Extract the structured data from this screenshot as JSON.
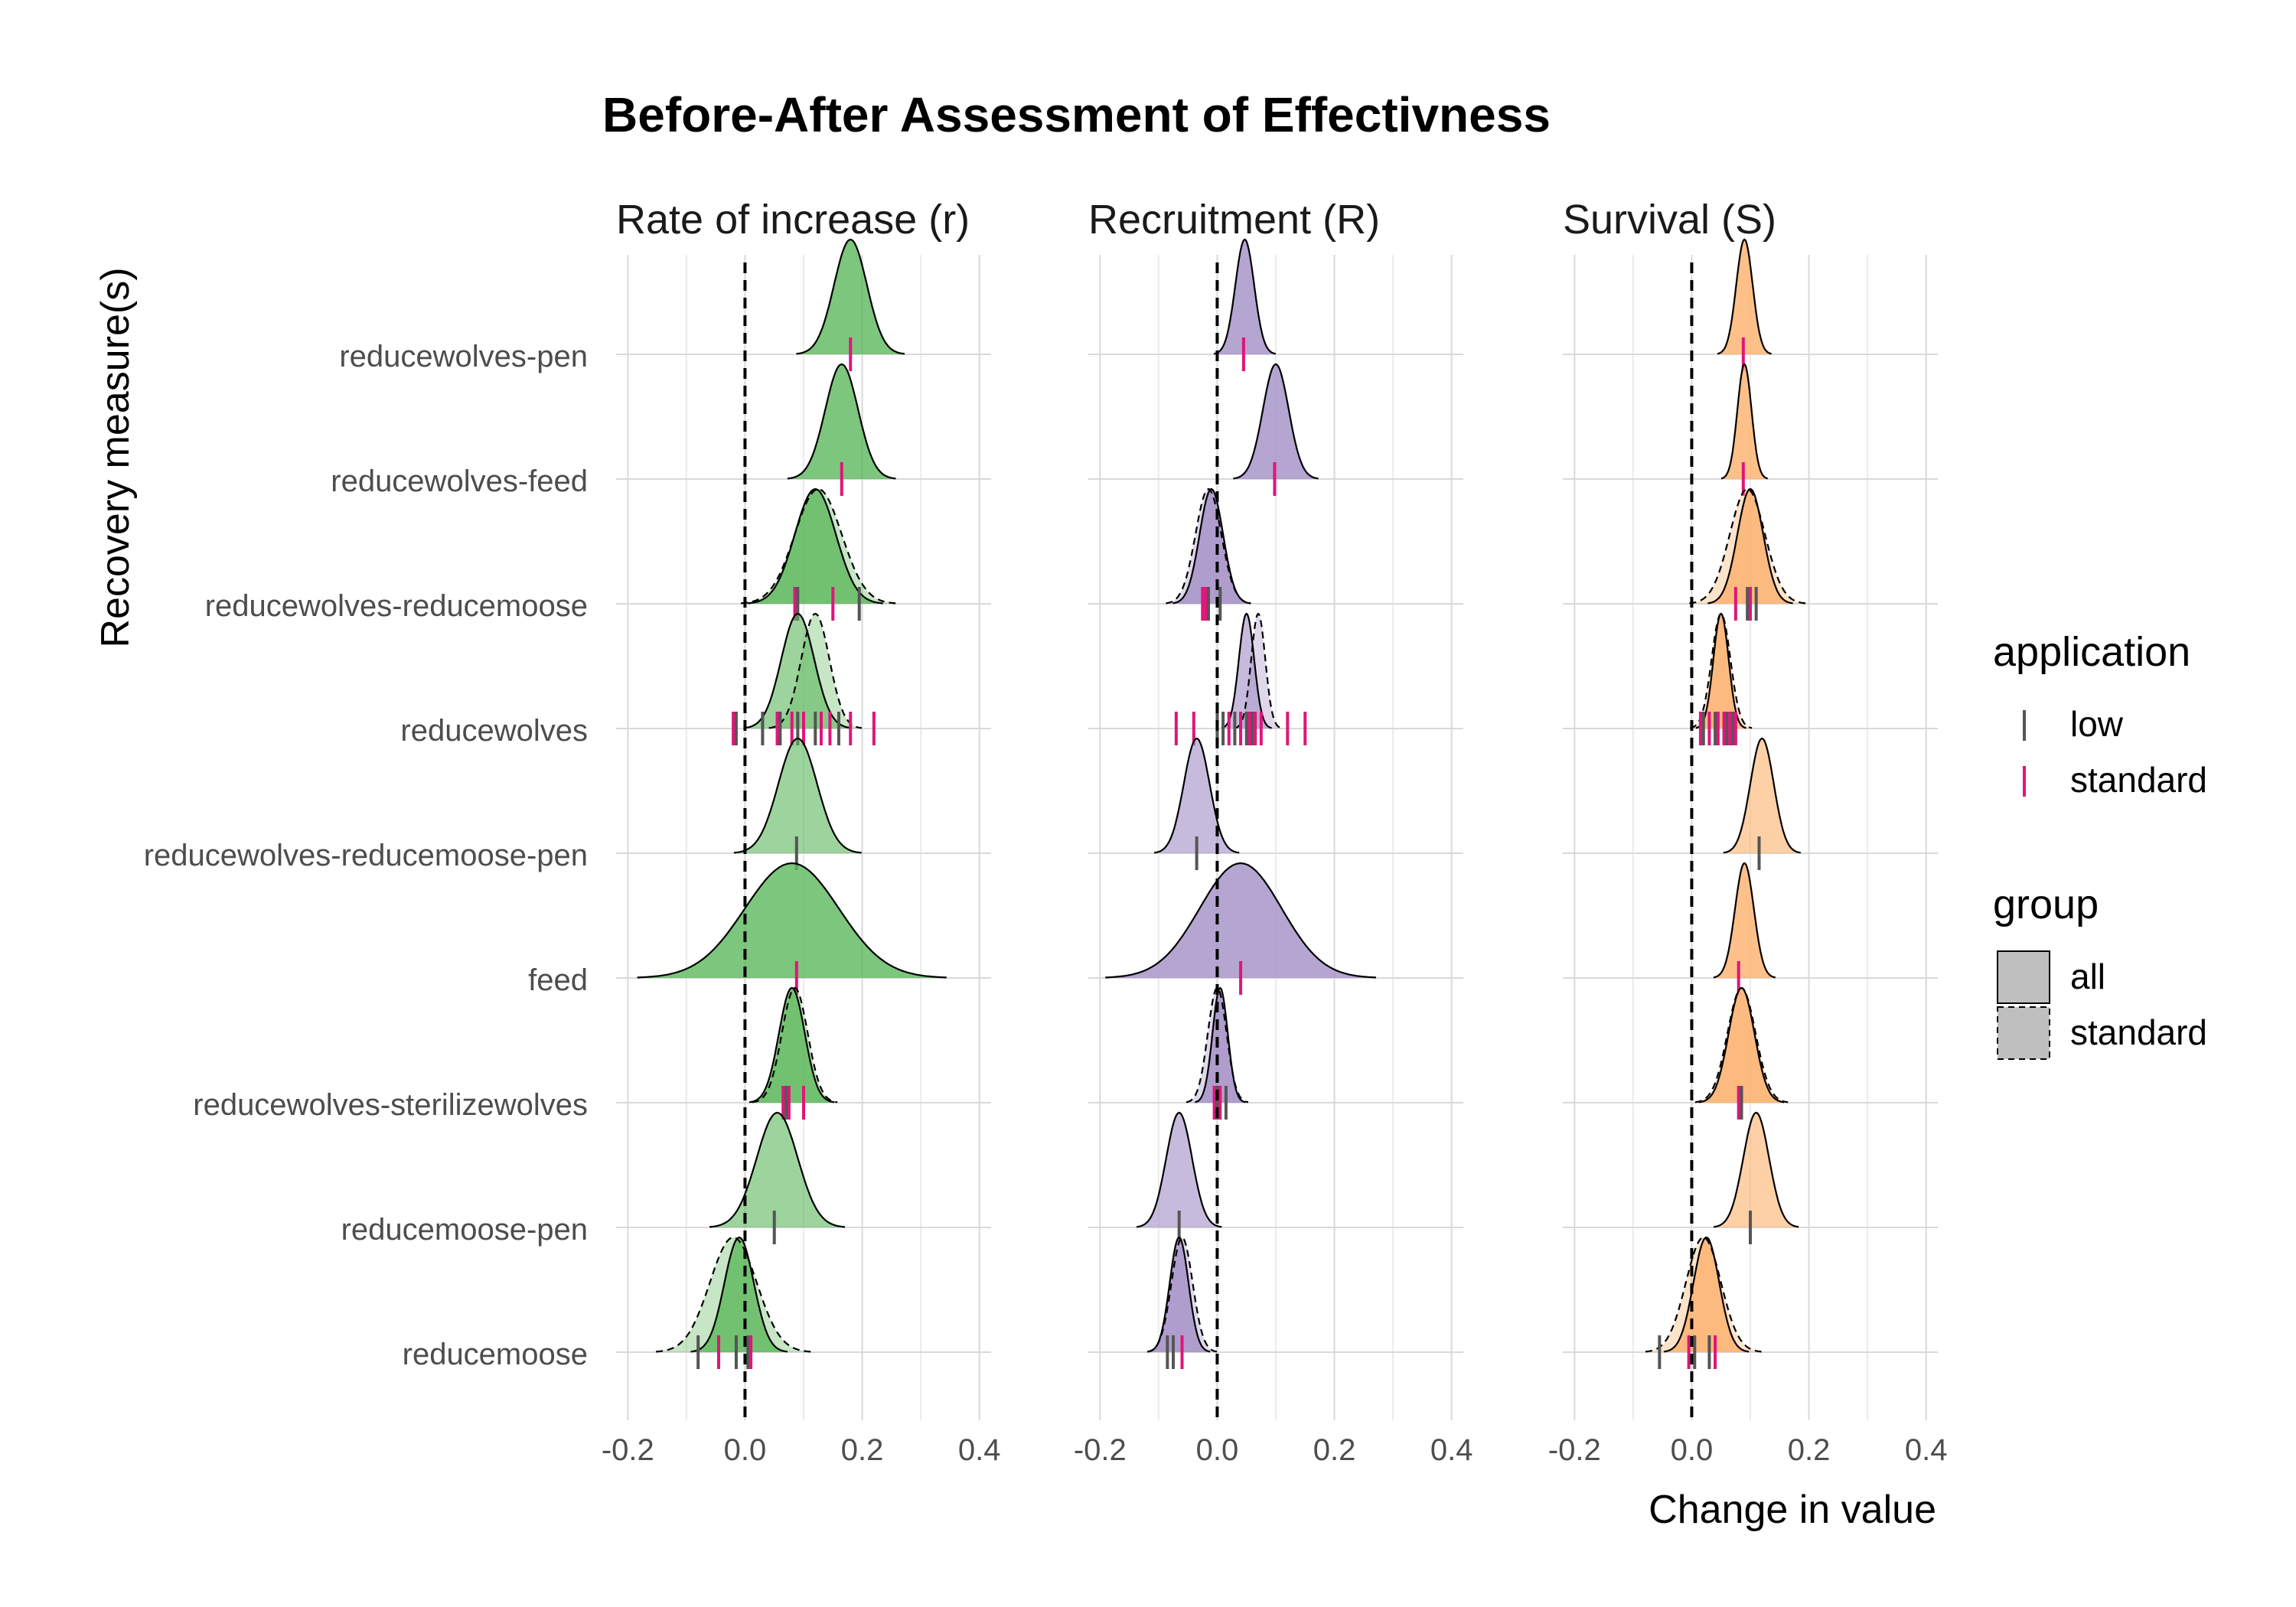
{
  "chart_data": {
    "type": "ridgeline",
    "title": "Before-After Assessment of Effectivness",
    "xlabel": "Change in value",
    "ylabel": "Recovery measure(s)",
    "xlim": [
      -0.22,
      0.42
    ],
    "x_ticks": [
      "-0.2",
      "0.0",
      "0.2",
      "0.4"
    ],
    "x_tick_values": [
      -0.2,
      0.0,
      0.2,
      0.4
    ],
    "reference_line_x": 0.0,
    "grid": true,
    "categories": [
      "reducewolves-pen",
      "reducewolves-feed",
      "reducewolves-reducemoose",
      "reducewolves",
      "reducewolves-reducemoose-pen",
      "feed",
      "reducewolves-sterilizewolves",
      "reducemoose-pen",
      "reducemoose"
    ],
    "colors": {
      "rate": "#5cb85c",
      "recruitment": "#a28ec6",
      "survival": "#fdb06b",
      "low": "#555555",
      "standard": "#e0157a"
    },
    "legend": {
      "position": "right",
      "application_title": "application",
      "application_items": [
        "low",
        "standard"
      ],
      "group_title": "group",
      "group_items": [
        "all",
        "standard"
      ]
    },
    "panels": [
      {
        "name": "Rate of increase (r)",
        "color_key": "rate",
        "rows": [
          {
            "mean": 0.18,
            "sd": 0.028,
            "alpha": 0.8,
            "std_dens": false,
            "low": [],
            "standard": [
              0.18
            ]
          },
          {
            "mean": 0.165,
            "sd": 0.028,
            "alpha": 0.8,
            "std_dens": false,
            "low": [],
            "standard": [
              0.165
            ]
          },
          {
            "mean": 0.12,
            "sd": 0.035,
            "alpha": 0.8,
            "std_dens": true,
            "std_mean": 0.125,
            "std_sd": 0.04,
            "low": [
              0.09,
              0.195
            ],
            "standard": [
              0.085,
              0.15
            ]
          },
          {
            "mean": 0.09,
            "sd": 0.028,
            "alpha": 0.6,
            "std_dens": true,
            "std_mean": 0.12,
            "std_sd": 0.024,
            "low": [
              -0.015,
              0.03,
              0.06,
              0.09,
              0.12,
              0.16
            ],
            "standard": [
              -0.02,
              0.055,
              0.08,
              0.1,
              0.13,
              0.145,
              0.18,
              0.22
            ]
          },
          {
            "mean": 0.09,
            "sd": 0.033,
            "alpha": 0.6,
            "std_dens": false,
            "low": [
              0.088
            ],
            "standard": []
          },
          {
            "mean": 0.08,
            "sd": 0.08,
            "alpha": 0.8,
            "std_dens": false,
            "low": [],
            "standard": [
              0.088
            ]
          },
          {
            "mean": 0.08,
            "sd": 0.022,
            "alpha": 0.8,
            "std_dens": true,
            "std_mean": 0.085,
            "std_sd": 0.022,
            "low": [
              0.07
            ],
            "standard": [
              0.065,
              0.075,
              0.1
            ]
          },
          {
            "mean": 0.055,
            "sd": 0.035,
            "alpha": 0.6,
            "std_dens": false,
            "low": [
              0.05
            ],
            "standard": []
          },
          {
            "mean": -0.01,
            "sd": 0.025,
            "alpha": 0.8,
            "std_dens": true,
            "std_mean": -0.02,
            "std_sd": 0.04,
            "low": [
              -0.08,
              -0.015,
              0.005
            ],
            "standard": [
              -0.045,
              0.01
            ]
          }
        ]
      },
      {
        "name": "Recruitment (R)",
        "color_key": "recruitment",
        "rows": [
          {
            "mean": 0.047,
            "sd": 0.016,
            "alpha": 0.8,
            "std_dens": false,
            "low": [],
            "standard": [
              0.045
            ]
          },
          {
            "mean": 0.1,
            "sd": 0.022,
            "alpha": 0.8,
            "std_dens": false,
            "low": [],
            "standard": [
              0.098
            ]
          },
          {
            "mean": -0.01,
            "sd": 0.02,
            "alpha": 0.8,
            "std_dens": true,
            "std_mean": -0.015,
            "std_sd": 0.022,
            "low": [
              -0.015,
              0.005
            ],
            "standard": [
              -0.025,
              -0.02
            ]
          },
          {
            "mean": 0.05,
            "sd": 0.013,
            "alpha": 0.6,
            "std_dens": true,
            "std_mean": 0.07,
            "std_sd": 0.012,
            "low": [
              0.0,
              0.01,
              0.03,
              0.05,
              0.06
            ],
            "standard": [
              -0.07,
              -0.04,
              0.02,
              0.04,
              0.055,
              0.065,
              0.075,
              0.12,
              0.15
            ]
          },
          {
            "mean": -0.035,
            "sd": 0.022,
            "alpha": 0.6,
            "std_dens": false,
            "low": [
              -0.035
            ],
            "standard": []
          },
          {
            "mean": 0.04,
            "sd": 0.07,
            "alpha": 0.8,
            "std_dens": false,
            "low": [],
            "standard": [
              0.04
            ]
          },
          {
            "mean": 0.005,
            "sd": 0.013,
            "alpha": 0.8,
            "std_dens": true,
            "std_mean": 0.0,
            "std_sd": 0.016,
            "low": [
              0.0,
              0.015
            ],
            "standard": [
              -0.005,
              0.005
            ]
          },
          {
            "mean": -0.065,
            "sd": 0.022,
            "alpha": 0.6,
            "std_dens": false,
            "low": [
              -0.065
            ],
            "standard": []
          },
          {
            "mean": -0.065,
            "sd": 0.016,
            "alpha": 0.8,
            "std_dens": true,
            "std_mean": -0.06,
            "std_sd": 0.018,
            "low": [
              -0.085,
              -0.075
            ],
            "standard": [
              -0.06
            ]
          }
        ]
      },
      {
        "name": "Survival (S)",
        "color_key": "survival",
        "rows": [
          {
            "mean": 0.09,
            "sd": 0.014,
            "alpha": 0.8,
            "std_dens": false,
            "low": [],
            "standard": [
              0.088
            ]
          },
          {
            "mean": 0.09,
            "sd": 0.012,
            "alpha": 0.8,
            "std_dens": false,
            "low": [],
            "standard": [
              0.088
            ]
          },
          {
            "mean": 0.1,
            "sd": 0.022,
            "alpha": 0.8,
            "std_dens": true,
            "std_mean": 0.095,
            "std_sd": 0.03,
            "low": [
              0.095,
              0.11
            ],
            "standard": [
              0.075,
              0.1
            ]
          },
          {
            "mean": 0.05,
            "sd": 0.013,
            "alpha": 0.8,
            "std_dens": true,
            "std_mean": 0.05,
            "std_sd": 0.016,
            "low": [
              0.02,
              0.04,
              0.06,
              0.07
            ],
            "standard": [
              0.015,
              0.03,
              0.045,
              0.055,
              0.065,
              0.075
            ]
          },
          {
            "mean": 0.12,
            "sd": 0.02,
            "alpha": 0.6,
            "std_dens": false,
            "low": [
              0.115
            ],
            "standard": []
          },
          {
            "mean": 0.09,
            "sd": 0.016,
            "alpha": 0.8,
            "std_dens": false,
            "low": [],
            "standard": [
              0.08
            ]
          },
          {
            "mean": 0.085,
            "sd": 0.022,
            "alpha": 0.8,
            "std_dens": true,
            "std_mean": 0.085,
            "std_sd": 0.024,
            "low": [
              0.085
            ],
            "standard": [
              0.08
            ]
          },
          {
            "mean": 0.11,
            "sd": 0.022,
            "alpha": 0.6,
            "std_dens": false,
            "low": [
              0.1
            ],
            "standard": []
          },
          {
            "mean": 0.025,
            "sd": 0.022,
            "alpha": 0.8,
            "std_dens": true,
            "std_mean": 0.02,
            "std_sd": 0.03,
            "low": [
              -0.055,
              0.005,
              0.03
            ],
            "standard": [
              -0.005,
              0.04
            ]
          }
        ]
      }
    ]
  }
}
